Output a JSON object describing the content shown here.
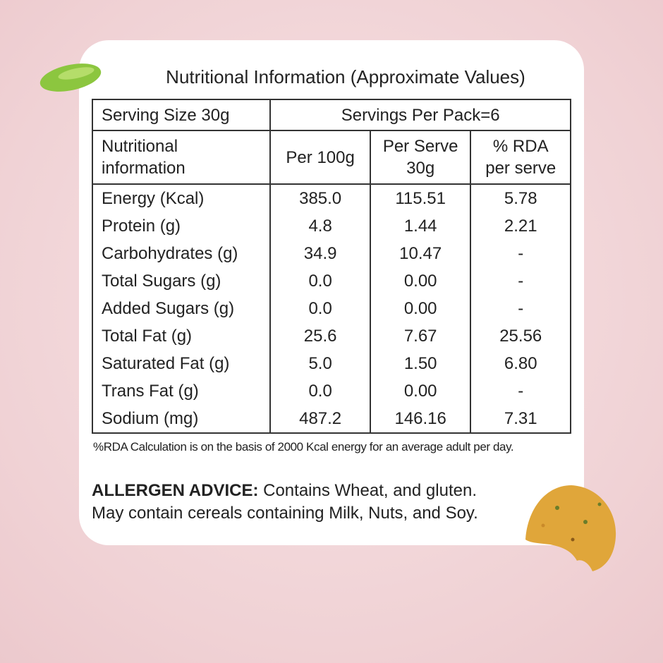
{
  "title": "Nutritional Information (Approximate Values)",
  "table": {
    "serving_size": "Serving Size 30g",
    "servings_per_pack": "Servings Per Pack=6",
    "columns": [
      "Nutritional\ninformation",
      "Per 100g",
      "Per Serve\n30g",
      "% RDA\nper serve"
    ],
    "rows": [
      [
        "Energy (Kcal)",
        "385.0",
        "115.51",
        "5.78"
      ],
      [
        "Protein (g)",
        "4.8",
        "1.44",
        "2.21"
      ],
      [
        "Carbohydrates (g)",
        "34.9",
        "10.47",
        "-"
      ],
      [
        "Total  Sugars (g)",
        "0.0",
        "0.00",
        "-"
      ],
      [
        "Added Sugars (g)",
        "0.0",
        "0.00",
        "-"
      ],
      [
        "Total Fat (g)",
        "25.6",
        "7.67",
        "25.56"
      ],
      [
        "Saturated Fat (g)",
        "5.0",
        "1.50",
        "6.80"
      ],
      [
        "Trans Fat (g)",
        "0.0",
        "0.00",
        "-"
      ],
      [
        "Sodium (mg)",
        "487.2",
        "146.16",
        "7.31"
      ]
    ]
  },
  "footnote": "%RDA Calculation is on the basis of 2000 Kcal energy for an average adult per day.",
  "allergen": {
    "label": "ALLERGEN ADVICE:",
    "line1": " Contains Wheat, and gluten.",
    "line2": "May contain cereals containing Milk, Nuts, and Soy."
  }
}
